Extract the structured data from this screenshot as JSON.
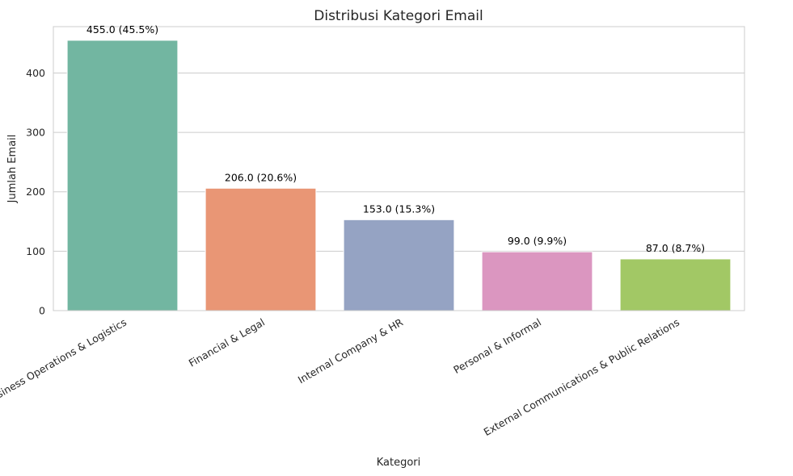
{
  "chart_data": {
    "type": "bar",
    "title": "Distribusi Kategori Email",
    "xlabel": "Kategori",
    "ylabel": "Jumlah Email",
    "categories": [
      "Business Operations & Logistics",
      "Financial & Legal",
      "Internal Company & HR",
      "Personal & Informal",
      "External Communications & Public Relations"
    ],
    "values": [
      455,
      206,
      153,
      99,
      87
    ],
    "data_labels": [
      "455.0 (45.5%)",
      "206.0 (20.6%)",
      "153.0 (15.3%)",
      "99.0 (9.9%)",
      "87.0 (8.7%)"
    ],
    "colors": [
      "#72b6a1",
      "#e99675",
      "#95a3c3",
      "#db96c0",
      "#a2c865"
    ],
    "ylim": [
      0,
      478
    ],
    "yticks": [
      0,
      100,
      200,
      300,
      400
    ],
    "grid": true,
    "legend": "none"
  }
}
